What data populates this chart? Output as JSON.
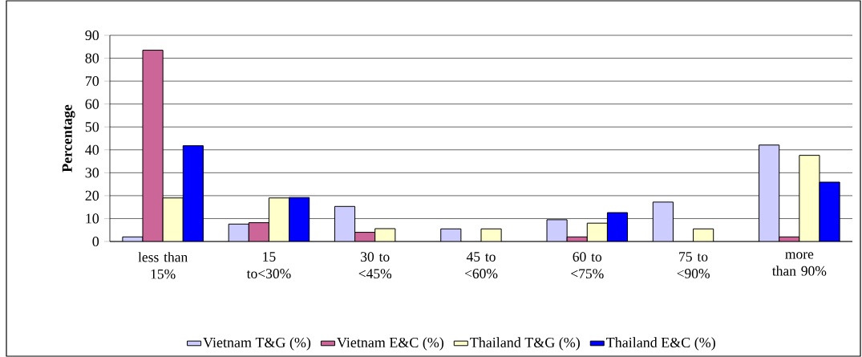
{
  "chart_data": {
    "type": "bar",
    "ylabel": "Percentage",
    "categories": [
      "less than 15%",
      "15 to<30%",
      "30 to <45%",
      "45 to <60%",
      "60 to <75%",
      "75 to <90%",
      "more than 90%"
    ],
    "series": [
      {
        "name": "Vietnam T&G (%)",
        "color": "#ccccff",
        "values": [
          2,
          7.6,
          15.3,
          5.5,
          9.5,
          17.2,
          42.1
        ]
      },
      {
        "name": "Vietnam E&C (%)",
        "color": "#cc6699",
        "values": [
          83.5,
          8.2,
          4,
          null,
          2,
          null,
          2
        ]
      },
      {
        "name": "Thailand T&G (%)",
        "color": "#ffffcc",
        "values": [
          19,
          19,
          5.6,
          5.5,
          8,
          5.5,
          37.6
        ]
      },
      {
        "name": "Thailand E&C (%)",
        "color": "#0000ff",
        "values": [
          41.8,
          19.2,
          null,
          null,
          12.6,
          null,
          25.9
        ]
      }
    ],
    "ylim": [
      0,
      90
    ],
    "yticks": [
      0,
      10,
      20,
      30,
      40,
      50,
      60,
      70,
      80,
      90
    ],
    "grid": "y",
    "legend": "bottom"
  }
}
